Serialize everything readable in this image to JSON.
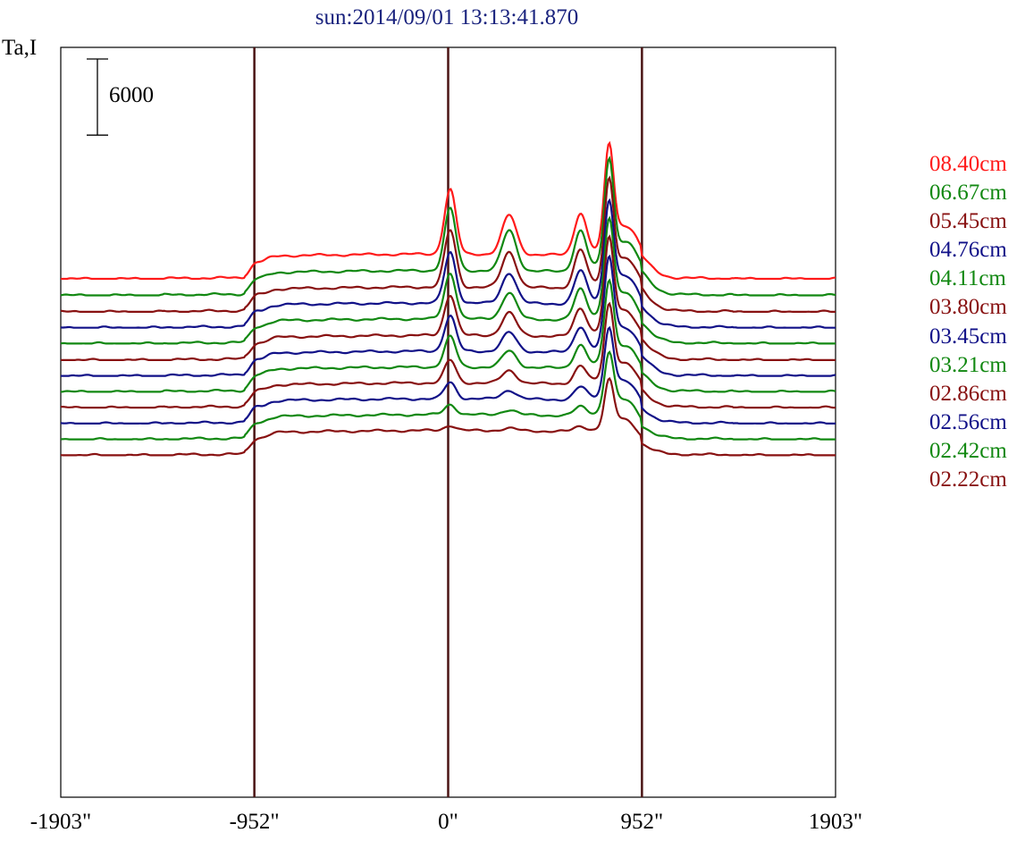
{
  "chart_data": {
    "type": "line",
    "title": "sun:2014/09/01 13:13:41.870",
    "ylabel": "Ta,I",
    "xlabel": "",
    "scale_bar_label": "6000",
    "scale_bar_value": 6000,
    "x_ticks": [
      "-1903\"",
      "-952\"",
      "0\"",
      "952\"",
      "1903\""
    ],
    "x_tick_values": [
      -1903,
      -952,
      0,
      952,
      1903
    ],
    "xlim": [
      -1903,
      1903
    ],
    "vertical_markers": [
      -952,
      0,
      952
    ],
    "marker_color": "#4a1414",
    "legend_position": "right",
    "series": [
      {
        "name": "08.40cm",
        "color": "#ff1a1a",
        "base": 0,
        "peak0": 5100,
        "peak_main": 7500,
        "bump": 3100,
        "bump2": 3300
      },
      {
        "name": "06.67cm",
        "color": "#118811",
        "base": 1300,
        "peak0": 4900,
        "peak_main": 7600,
        "bump": 3200,
        "bump2": 3200
      },
      {
        "name": "05.45cm",
        "color": "#881111",
        "base": 2600,
        "peak0": 4500,
        "peak_main": 7400,
        "bump": 2800,
        "bump2": 3000
      },
      {
        "name": "04.76cm",
        "color": "#111188",
        "base": 3850,
        "peak0": 4000,
        "peak_main": 7000,
        "bump": 2400,
        "bump2": 2600
      },
      {
        "name": "04.11cm",
        "color": "#118811",
        "base": 5100,
        "peak0": 3600,
        "peak_main": 6800,
        "bump": 2100,
        "bump2": 2400
      },
      {
        "name": "03.80cm",
        "color": "#881111",
        "base": 6400,
        "peak0": 3200,
        "peak_main": 6600,
        "bump": 1800,
        "bump2": 2200
      },
      {
        "name": "03.45cm",
        "color": "#111188",
        "base": 7650,
        "peak0": 2800,
        "peak_main": 6400,
        "bump": 1500,
        "bump2": 2000
      },
      {
        "name": "03.21cm",
        "color": "#118811",
        "base": 8900,
        "peak0": 2400,
        "peak_main": 5900,
        "bump": 1300,
        "bump2": 1800
      },
      {
        "name": "02.86cm",
        "color": "#881111",
        "base": 10150,
        "peak0": 1800,
        "peak_main": 5400,
        "bump": 1000,
        "bump2": 1400
      },
      {
        "name": "02.56cm",
        "color": "#111188",
        "base": 11400,
        "peak0": 1300,
        "peak_main": 4900,
        "bump": 700,
        "bump2": 1000
      },
      {
        "name": "02.42cm",
        "color": "#118811",
        "base": 12650,
        "peak0": 800,
        "peak_main": 4300,
        "bump": 400,
        "bump2": 700
      },
      {
        "name": "02.22cm",
        "color": "#881111",
        "base": 13900,
        "peak0": 400,
        "peak_main": 3500,
        "bump": 200,
        "bump2": 400
      }
    ]
  }
}
